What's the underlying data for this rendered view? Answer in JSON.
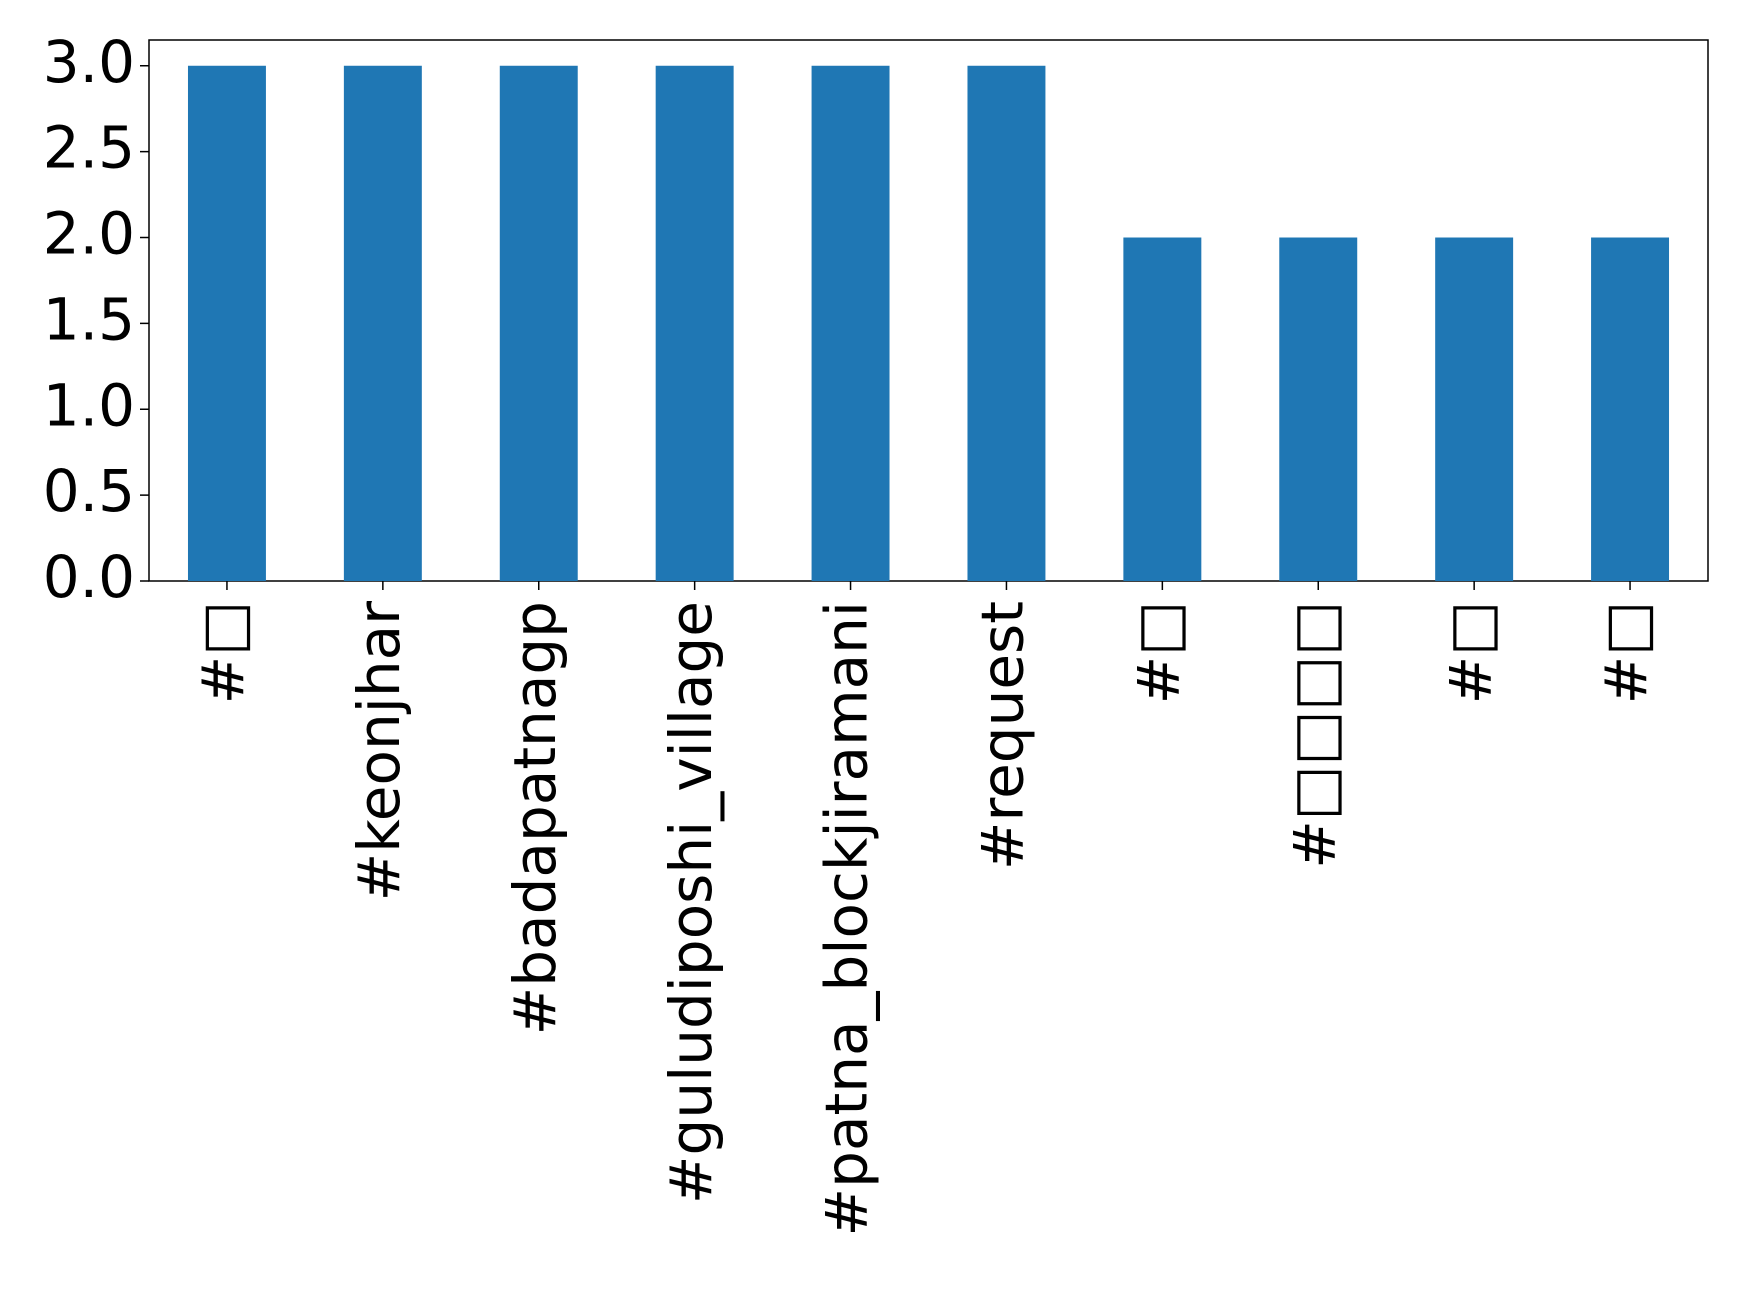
{
  "chart_data": {
    "type": "bar",
    "categories": [
      "#□",
      "#keonjhar",
      "#badapatnagp",
      "#guludiposhi_village",
      "#patna_blockjiramani",
      "#request",
      "#□",
      "#□□□□",
      "#□",
      "#□"
    ],
    "values": [
      3,
      3,
      3,
      3,
      3,
      3,
      2,
      2,
      2,
      2
    ],
    "color": "#1f77b4",
    "ylim": [
      0,
      3.15
    ],
    "yticks": [
      {
        "value": 0,
        "label": "0.0"
      },
      {
        "value": 0.5,
        "label": "0.5"
      },
      {
        "value": 1,
        "label": "1.0"
      },
      {
        "value": 1.5,
        "label": "1.5"
      },
      {
        "value": 2,
        "label": "2.0"
      },
      {
        "value": 2.5,
        "label": "2.5"
      },
      {
        "value": 3,
        "label": "3.0"
      }
    ],
    "grid": false
  }
}
